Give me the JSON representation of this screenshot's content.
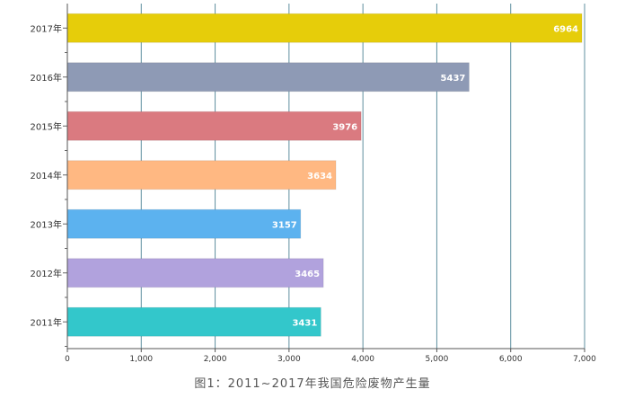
{
  "chart_data": {
    "type": "bar",
    "orientation": "horizontal",
    "categories": [
      "2017年",
      "2016年",
      "2015年",
      "2014年",
      "2013年",
      "2012年",
      "2011年"
    ],
    "values": [
      6964,
      5437,
      3976,
      3634,
      3157,
      3465,
      3431
    ],
    "colors": [
      "#e6cd0a",
      "#8e9ab5",
      "#da7a80",
      "#ffb882",
      "#5cb2ef",
      "#b1a2dd",
      "#33c7cb"
    ],
    "xlim": [
      0,
      7000
    ],
    "xticks": [
      "0",
      "1,000",
      "2,000",
      "3,000",
      "4,000",
      "5,000",
      "6,000",
      "7,000"
    ],
    "grid": true,
    "data_labels": true
  },
  "caption": "图1：2011~2017年我国危险废物产生量"
}
